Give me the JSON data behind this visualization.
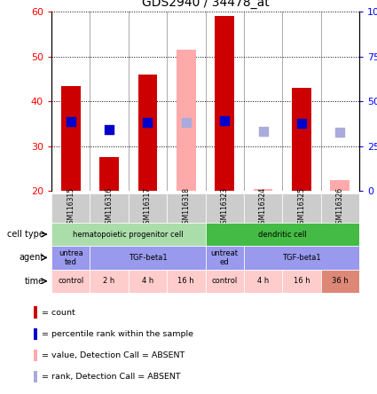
{
  "title": "GDS2940 / 34478_at",
  "samples": [
    "GSM116315",
    "GSM116316",
    "GSM116317",
    "GSM116318",
    "GSM116323",
    "GSM116324",
    "GSM116325",
    "GSM116326"
  ],
  "bar_values": [
    43.5,
    27.5,
    46.0,
    51.5,
    59.0,
    20.5,
    43.0,
    22.5
  ],
  "bar_colors": [
    "#cc0000",
    "#cc0000",
    "#cc0000",
    "#ffaaaa",
    "#cc0000",
    "#ffaaaa",
    "#cc0000",
    "#ffaaaa"
  ],
  "rank_values": [
    39.0,
    34.5,
    38.5,
    38.5,
    39.5,
    33.5,
    38.0,
    33.0
  ],
  "rank_colors": [
    "#0000cc",
    "#0000cc",
    "#0000cc",
    "#aaaadd",
    "#0000cc",
    "#aaaadd",
    "#0000cc",
    "#aaaadd"
  ],
  "ylim_left": [
    20,
    60
  ],
  "ylim_right": [
    0,
    100
  ],
  "yticks_left": [
    20,
    30,
    40,
    50,
    60
  ],
  "yticks_right": [
    0,
    25,
    50,
    75,
    100
  ],
  "cell_type_groups": [
    {
      "label": "hematopoietic progenitor cell",
      "start": 0,
      "end": 4,
      "color": "#aaddaa"
    },
    {
      "label": "dendritic cell",
      "start": 4,
      "end": 8,
      "color": "#44bb44"
    }
  ],
  "agent_groups": [
    {
      "label": "untrea\nted",
      "start": 0,
      "end": 1,
      "color": "#9999ee"
    },
    {
      "label": "TGF-beta1",
      "start": 1,
      "end": 4,
      "color": "#9999ee"
    },
    {
      "label": "untreat\ned",
      "start": 4,
      "end": 5,
      "color": "#9999ee"
    },
    {
      "label": "TGF-beta1",
      "start": 5,
      "end": 8,
      "color": "#9999ee"
    }
  ],
  "time_groups": [
    {
      "label": "control",
      "start": 0,
      "end": 1,
      "color": "#ffcccc"
    },
    {
      "label": "2 h",
      "start": 1,
      "end": 2,
      "color": "#ffcccc"
    },
    {
      "label": "4 h",
      "start": 2,
      "end": 3,
      "color": "#ffcccc"
    },
    {
      "label": "16 h",
      "start": 3,
      "end": 4,
      "color": "#ffcccc"
    },
    {
      "label": "control",
      "start": 4,
      "end": 5,
      "color": "#ffcccc"
    },
    {
      "label": "4 h",
      "start": 5,
      "end": 6,
      "color": "#ffcccc"
    },
    {
      "label": "16 h",
      "start": 6,
      "end": 7,
      "color": "#ffcccc"
    },
    {
      "label": "36 h",
      "start": 7,
      "end": 8,
      "color": "#dd8877"
    }
  ],
  "legend_items": [
    {
      "label": "count",
      "color": "#cc0000"
    },
    {
      "label": "percentile rank within the sample",
      "color": "#0000cc"
    },
    {
      "label": "value, Detection Call = ABSENT",
      "color": "#ffaaaa"
    },
    {
      "label": "rank, Detection Call = ABSENT",
      "color": "#aaaadd"
    }
  ],
  "bar_width": 0.5,
  "rank_marker_size": 45,
  "row_labels": [
    "cell type",
    "agent",
    "time"
  ],
  "sample_bg": "#cccccc"
}
